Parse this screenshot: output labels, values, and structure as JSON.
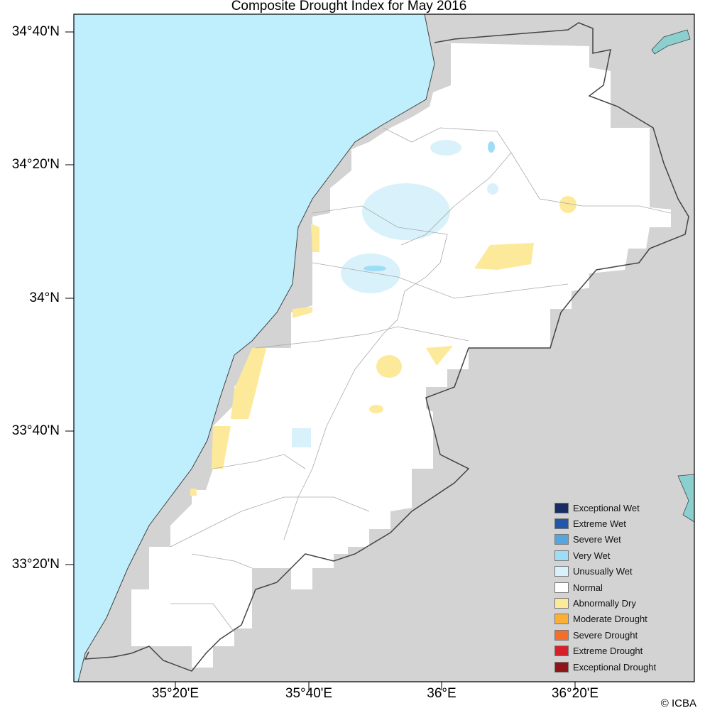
{
  "title": "Composite Drought Index for May 2016",
  "lat_labels": [
    "34°40'N",
    "34°20'N",
    "34°N",
    "33°40'N",
    "33°20'N"
  ],
  "lon_labels": [
    "35°20'E",
    "35°40'E",
    "36°E",
    "36°20'E"
  ],
  "credit": "© ICBA",
  "colors": {
    "sea": "#bfeefc",
    "outside_land": "#d3d3d3",
    "lake": "#8ccfcf",
    "border": "#444444"
  },
  "legend": [
    {
      "label": "Exceptional Wet",
      "color": "#1a2c64"
    },
    {
      "label": "Extreme Wet",
      "color": "#2256a8"
    },
    {
      "label": "Severe Wet",
      "color": "#56a5dc"
    },
    {
      "label": "Very Wet",
      "color": "#9fdcf6"
    },
    {
      "label": "Unusually Wet",
      "color": "#d9f1fa"
    },
    {
      "label": "Normal",
      "color": "#ffffff"
    },
    {
      "label": "Abnormally Dry",
      "color": "#fde99a"
    },
    {
      "label": "Moderate Drought",
      "color": "#fbb034"
    },
    {
      "label": "Severe Drought",
      "color": "#f36d2b"
    },
    {
      "label": "Extreme Drought",
      "color": "#d7202a"
    },
    {
      "label": "Exceptional Drought",
      "color": "#8e1519"
    }
  ]
}
